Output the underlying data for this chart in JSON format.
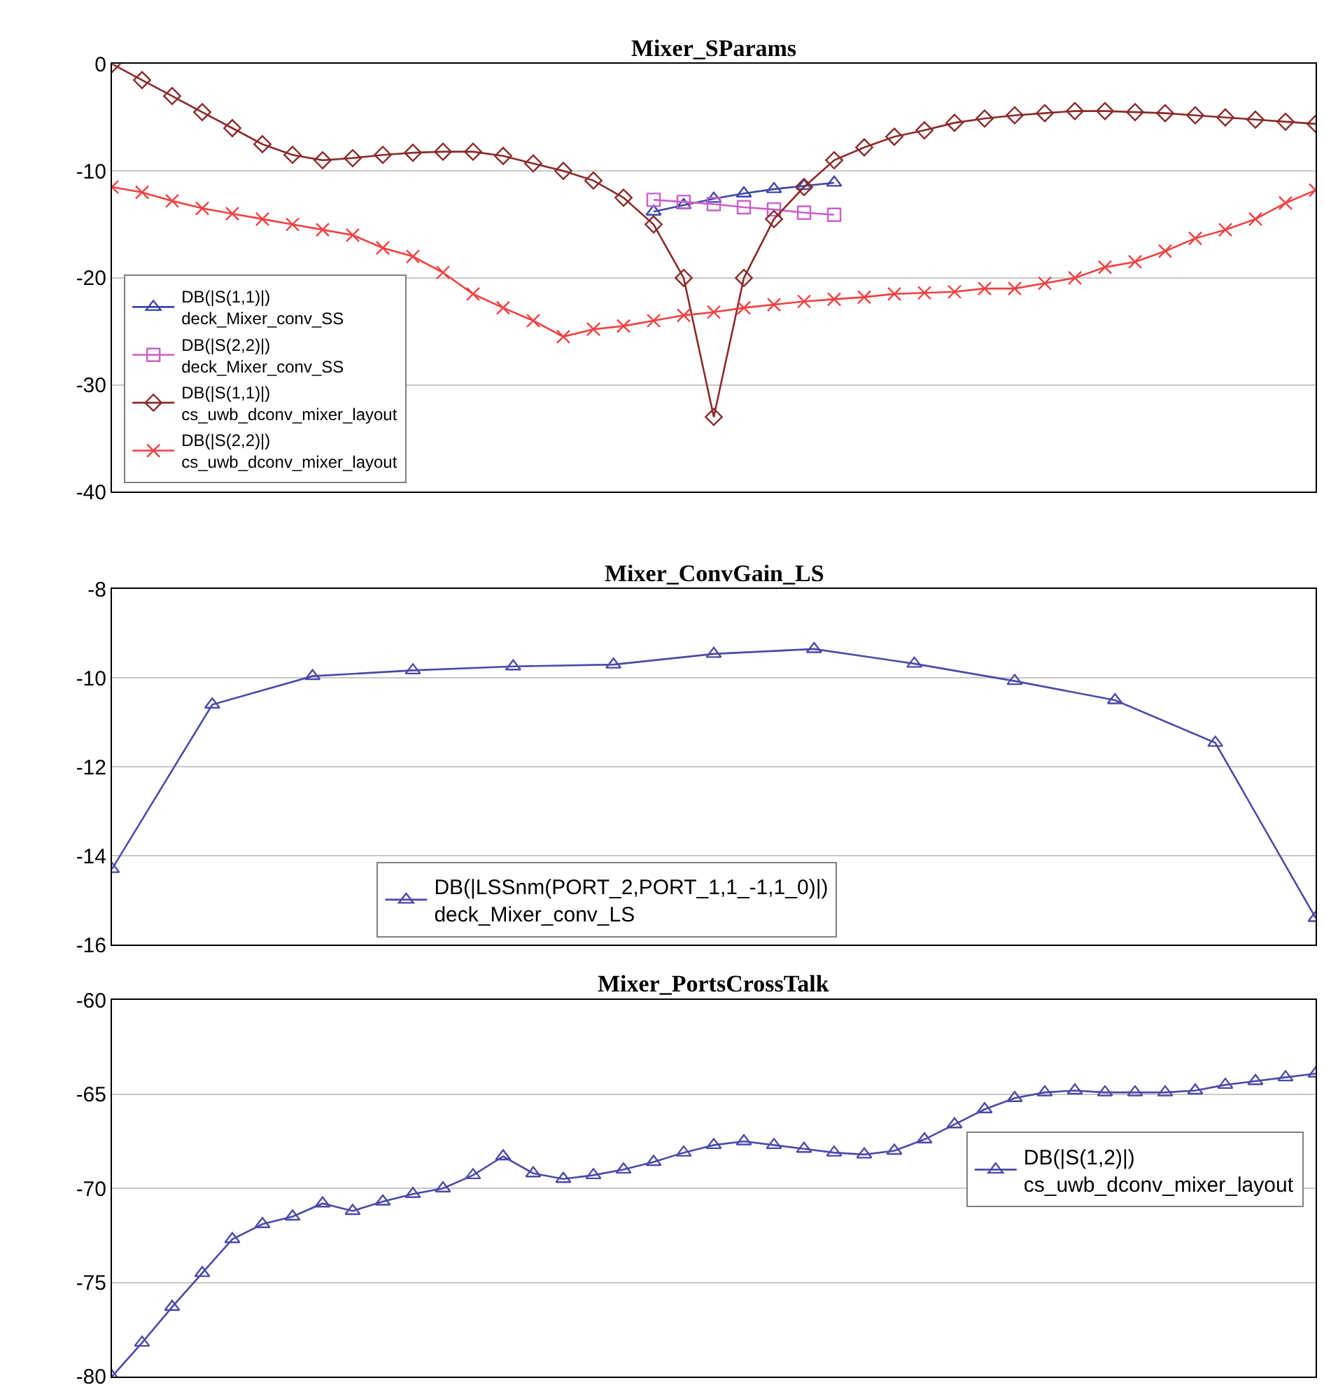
{
  "chart_data": [
    {
      "type": "line",
      "title": "Mixer_SParams",
      "categories": [
        null,
        null,
        null,
        null,
        null,
        null,
        null,
        null,
        null,
        null,
        null,
        null,
        null,
        null,
        null,
        null,
        null,
        null,
        null,
        null,
        null,
        null,
        null,
        null,
        null,
        null,
        null,
        null,
        null,
        null,
        null,
        null,
        null,
        null,
        null,
        null,
        null,
        null,
        null,
        null,
        null
      ],
      "ylim": [
        -40,
        0
      ],
      "yticks": [
        -40,
        -30,
        -20,
        -10,
        0
      ],
      "grid": "y",
      "tick_labels": "y",
      "legend": "bottom left",
      "series": [
        {
          "name": "DB(|S(1,1)|)\ndeck_Mixer_conv_SS",
          "color": "#3c46a8",
          "marker": "triangle",
          "values": [
            null,
            null,
            null,
            null,
            null,
            null,
            null,
            null,
            null,
            null,
            null,
            null,
            null,
            null,
            null,
            null,
            null,
            null,
            -13.8,
            -13.2,
            -12.6,
            -12.1,
            -11.7,
            -11.4,
            -11.1,
            null,
            null,
            null,
            null,
            null,
            null,
            null,
            null,
            null,
            null,
            null,
            null,
            null,
            null,
            null,
            null
          ]
        },
        {
          "name": "DB(|S(2,2)|)\ndeck_Mixer_conv_SS",
          "color": "#c860c8",
          "marker": "square",
          "values": [
            null,
            null,
            null,
            null,
            null,
            null,
            null,
            null,
            null,
            null,
            null,
            null,
            null,
            null,
            null,
            null,
            null,
            null,
            -12.7,
            -12.9,
            -13.1,
            -13.4,
            -13.6,
            -13.9,
            -14.1,
            null,
            null,
            null,
            null,
            null,
            null,
            null,
            null,
            null,
            null,
            null,
            null,
            null,
            null,
            null,
            null
          ]
        },
        {
          "name": "DB(|S(1,1)|)\ncs_uwb_dconv_mixer_layout",
          "color": "#8b2a2a",
          "marker": "diamond",
          "values": [
            0,
            -1.5,
            -3,
            -4.5,
            -6,
            -7.5,
            -8.5,
            -9,
            -8.8,
            -8.5,
            -8.3,
            -8.2,
            -8.2,
            -8.6,
            -9.3,
            -10.0,
            -10.9,
            -12.5,
            -15,
            -20,
            -33,
            -20,
            -14.5,
            -11.5,
            -9,
            -7.8,
            -6.8,
            -6.2,
            -5.5,
            -5.1,
            -4.8,
            -4.6,
            -4.4,
            -4.4,
            -4.5,
            -4.6,
            -4.8,
            -5.0,
            -5.2,
            -5.4,
            -5.6
          ]
        },
        {
          "name": "DB(|S(2,2)|)\ncs_uwb_dconv_mixer_layout",
          "color": "#f04040",
          "marker": "cross",
          "values": [
            -11.5,
            -12,
            -12.8,
            -13.5,
            -14,
            -14.5,
            -15,
            -15.5,
            -16,
            -17.2,
            -18,
            -19.5,
            -21.5,
            -22.8,
            -24,
            -25.5,
            -24.8,
            -24.5,
            -24,
            -23.5,
            -23.2,
            -22.8,
            -22.5,
            -22.2,
            -22,
            -21.8,
            -21.5,
            -21.4,
            -21.3,
            -21,
            -21,
            -20.5,
            -20,
            -19,
            -18.5,
            -17.5,
            -16.3,
            -15.5,
            -14.5,
            -13,
            -11.8
          ]
        }
      ]
    },
    {
      "type": "line",
      "title": "Mixer_ConvGain_LS",
      "categories": [
        null,
        null,
        null,
        null,
        null,
        null,
        null,
        null,
        null,
        null,
        null,
        null,
        null
      ],
      "ylim": [
        -16,
        -8
      ],
      "yticks": [
        -16,
        -14,
        -12,
        -10,
        -8
      ],
      "grid": "y",
      "tick_labels": "y",
      "legend": "bottom",
      "series": [
        {
          "name": "DB(|LSSnm(PORT_2,PORT_1,1_-1,1_0)|)\ndeck_Mixer_conv_LS",
          "color": "#4a4aa8",
          "marker": "triangle",
          "values": [
            -14.3,
            -10.6,
            -9.96,
            -9.83,
            -9.74,
            -9.7,
            -9.46,
            -9.35,
            -9.68,
            -10.07,
            -10.5,
            -11.46,
            -15.4
          ]
        }
      ]
    },
    {
      "type": "line",
      "title": "Mixer_PortsCrossTalk",
      "categories": [
        null,
        null,
        null,
        null,
        null,
        null,
        null,
        null,
        null,
        null,
        null,
        null,
        null,
        null,
        null,
        null,
        null,
        null,
        null,
        null,
        null,
        null,
        null,
        null,
        null,
        null,
        null,
        null,
        null,
        null,
        null,
        null,
        null,
        null,
        null,
        null,
        null,
        null,
        null,
        null,
        null
      ],
      "ylim": [
        -80,
        -60
      ],
      "yticks": [
        -80,
        -75,
        -70,
        -65,
        -60
      ],
      "grid": "y",
      "tick_labels": "y",
      "legend": "right",
      "series": [
        {
          "name": "DB(|S(1,2)|)\ncs_uwb_dconv_mixer_layout",
          "color": "#4a4aa8",
          "marker": "triangle",
          "values": [
            -80,
            -78.2,
            -76.3,
            -74.5,
            -72.7,
            -71.9,
            -71.5,
            -70.8,
            -71.2,
            -70.7,
            -70.3,
            -70.0,
            -69.3,
            -68.3,
            -69.2,
            -69.5,
            -69.3,
            -69.0,
            -68.6,
            -68.1,
            -67.7,
            -67.5,
            -67.7,
            -67.9,
            -68.1,
            -68.2,
            -68.0,
            -67.4,
            -66.6,
            -65.8,
            -65.2,
            -64.9,
            -64.8,
            -64.9,
            -64.9,
            -64.9,
            -64.8,
            -64.5,
            -64.3,
            -64.1,
            -63.9
          ]
        }
      ]
    }
  ]
}
